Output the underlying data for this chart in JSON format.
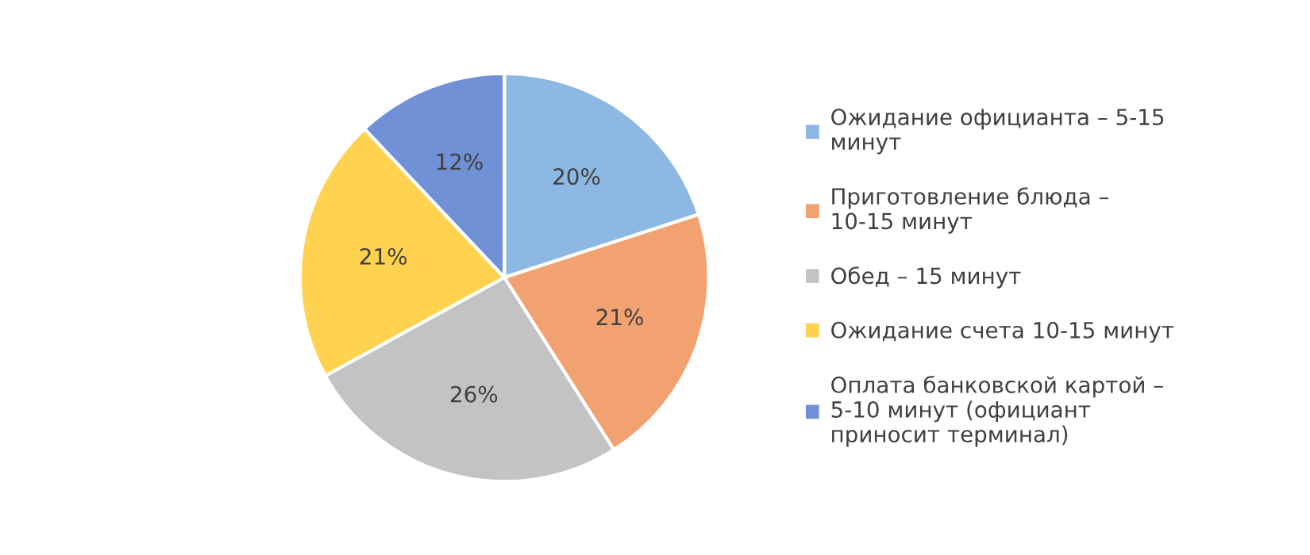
{
  "chart_data": {
    "type": "pie",
    "categories": [
      "Ожидание официанта – 5-15 минут",
      "Приготовление блюда – 10-15 минут",
      "Обед – 15 минут",
      "Ожидание счета 10-15 минут",
      "Оплата банковской картой – 5-10 минут (официант приносит терминал)"
    ],
    "values": [
      20,
      21,
      26,
      21,
      12
    ],
    "value_labels": [
      "20%",
      "21%",
      "26%",
      "21%",
      "12%"
    ],
    "colors": [
      "#8db8e4",
      "#f2a170",
      "#c3c3c3",
      "#ffd24f",
      "#7191d6"
    ],
    "legend": "right"
  }
}
